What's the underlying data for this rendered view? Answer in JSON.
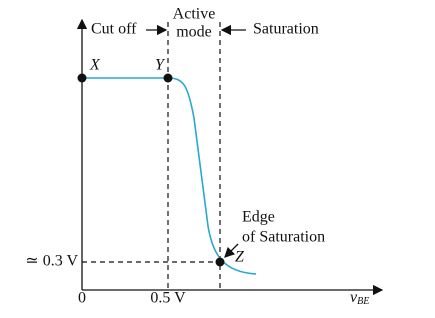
{
  "regions": {
    "cutoff": "Cut off",
    "active": [
      "Active",
      "mode"
    ],
    "saturation": "Saturation"
  },
  "points": {
    "x": "X",
    "y": "Y",
    "z": "Z"
  },
  "annotation": [
    "Edge",
    "of Saturation"
  ],
  "axis": {
    "y_label": "≃ 0.3 V",
    "x_ticks": [
      "0",
      "0.5 V"
    ],
    "x_label": "v",
    "x_label_sub": "BE"
  }
}
